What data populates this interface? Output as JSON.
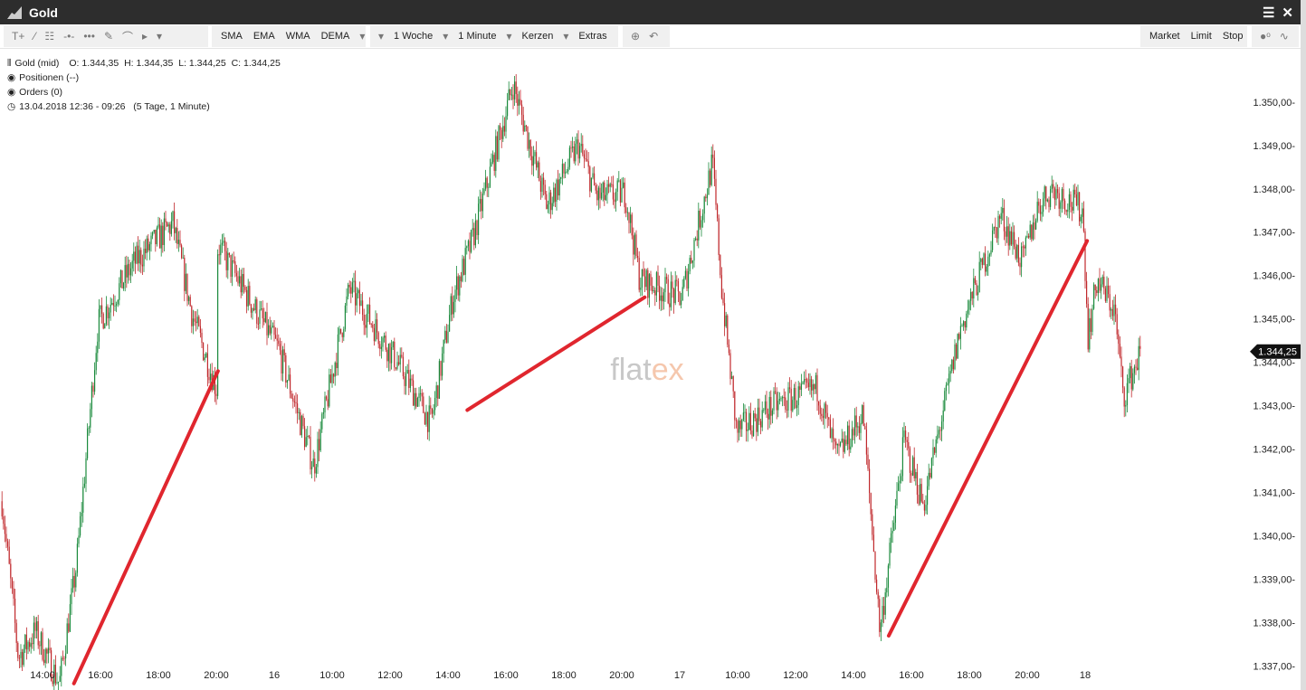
{
  "window": {
    "title": "Gold",
    "menu_icon": "hamburger-icon",
    "close_icon": "close-icon"
  },
  "toolbar": {
    "drawing_tools": [
      "text-tool-icon",
      "line-tool-icon",
      "fibonacci-tool-icon",
      "horizontal-line-icon",
      "channel-icon",
      "pencil-icon",
      "arc-icon",
      "arrow-icon",
      "dropdown-icon"
    ],
    "indicators": [
      "SMA",
      "EMA",
      "WMA",
      "DEMA"
    ],
    "period": "1 Woche",
    "interval": "1 Minute",
    "chart_type": "Kerzen",
    "extras": "Extras",
    "orders": [
      "Market",
      "Limit",
      "Stop"
    ]
  },
  "legend": {
    "instrument": "Gold (mid)",
    "ohlc": "O: 1.344,35  H: 1.344,35  L: 1.344,25  C: 1.344,25",
    "positions": "Positionen (--)",
    "orders": "Orders (0)",
    "range": "13.04.2018 12:36 - 09:26   (5 Tage, 1 Minute)"
  },
  "watermark": "flatex",
  "chart_data": {
    "type": "candlestick",
    "colors": {
      "up": "#1a8a3c",
      "down": "#c0282c",
      "trendline": "#e0262e"
    },
    "ylim": [
      1336.5,
      1350.6
    ],
    "y_ticks": [
      "1.337,00",
      "1.338,00",
      "1.339,00",
      "1.340,00",
      "1.341,00",
      "1.342,00",
      "1.343,00",
      "1.344,00",
      "1.345,00",
      "1.346,00",
      "1.347,00",
      "1.348,00",
      "1.349,00",
      "1.350,00"
    ],
    "y_tick_values": [
      1337,
      1338,
      1339,
      1340,
      1341,
      1342,
      1343,
      1344,
      1345,
      1346,
      1347,
      1348,
      1349,
      1350
    ],
    "last_price": "1.344,25",
    "last_price_value": 1344.25,
    "x_ticks": [
      {
        "label": "14:00",
        "t": "2018-04-13 14:00"
      },
      {
        "label": "16:00",
        "t": "2018-04-13 16:00"
      },
      {
        "label": "18:00",
        "t": "2018-04-13 18:00"
      },
      {
        "label": "20:00",
        "t": "2018-04-13 20:00"
      },
      {
        "label": "16",
        "t": "2018-04-16 00:00"
      },
      {
        "label": "10:00",
        "t": "2018-04-16 10:00"
      },
      {
        "label": "12:00",
        "t": "2018-04-16 12:00"
      },
      {
        "label": "14:00",
        "t": "2018-04-16 14:00"
      },
      {
        "label": "16:00",
        "t": "2018-04-16 16:00"
      },
      {
        "label": "18:00",
        "t": "2018-04-16 18:00"
      },
      {
        "label": "20:00",
        "t": "2018-04-16 20:00"
      },
      {
        "label": "17",
        "t": "2018-04-17 00:00"
      },
      {
        "label": "10:00",
        "t": "2018-04-17 10:00"
      },
      {
        "label": "12:00",
        "t": "2018-04-17 12:00"
      },
      {
        "label": "14:00",
        "t": "2018-04-17 14:00"
      },
      {
        "label": "16:00",
        "t": "2018-04-17 16:00"
      },
      {
        "label": "18:00",
        "t": "2018-04-17 18:00"
      },
      {
        "label": "20:00",
        "t": "2018-04-17 20:00"
      },
      {
        "label": "18",
        "t": "2018-04-18 00:00"
      }
    ],
    "price_path": [
      [
        "2018-04-13 12:36",
        1340.8
      ],
      [
        "2018-04-13 13:10",
        1337.2
      ],
      [
        "2018-04-13 13:45",
        1337.8
      ],
      [
        "2018-04-13 14:35",
        1336.6
      ],
      [
        "2018-04-13 15:10",
        1339.3
      ],
      [
        "2018-04-13 15:55",
        1344.9
      ],
      [
        "2018-04-13 17:10",
        1346.3
      ],
      [
        "2018-04-13 18:30",
        1347.2
      ],
      [
        "2018-04-13 19:10",
        1345.1
      ],
      [
        "2018-04-13 20:00",
        1343.4
      ],
      [
        "2018-04-13 21:20",
        1346.7
      ],
      [
        "2018-04-16 00:45",
        1344.3
      ],
      [
        "2018-04-16 06:50",
        1341.6
      ],
      [
        "2018-04-16 10:36",
        1345.7
      ],
      [
        "2018-04-16 12:10",
        1344.1
      ],
      [
        "2018-04-16 13:25",
        1342.6
      ],
      [
        "2018-04-16 14:10",
        1345.5
      ],
      [
        "2018-04-16 14:50",
        1346.8
      ],
      [
        "2018-04-16 16:15",
        1350.4
      ],
      [
        "2018-04-16 17:25",
        1347.6
      ],
      [
        "2018-04-16 18:30",
        1349.0
      ],
      [
        "2018-04-16 19:10",
        1347.8
      ],
      [
        "2018-04-16 20:15",
        1347.9
      ],
      [
        "2018-04-16 21:15",
        1345.9
      ],
      [
        "2018-04-17 00:20",
        1345.5
      ],
      [
        "2018-04-17 05:40",
        1348.6
      ],
      [
        "2018-04-17 07:15",
        1345.7
      ],
      [
        "2018-04-17 09:50",
        1342.4
      ],
      [
        "2018-04-17 11:15",
        1343.0
      ],
      [
        "2018-04-17 12:45",
        1343.4
      ],
      [
        "2018-04-17 13:25",
        1341.8
      ],
      [
        "2018-04-17 14:20",
        1342.8
      ],
      [
        "2018-04-17 14:55",
        1337.8
      ],
      [
        "2018-04-17 15:45",
        1342.2
      ],
      [
        "2018-04-17 16:25",
        1340.7
      ],
      [
        "2018-04-17 17:40",
        1344.7
      ],
      [
        "2018-04-17 19:05",
        1347.4
      ],
      [
        "2018-04-17 19:50",
        1346.3
      ],
      [
        "2018-04-17 20:45",
        1347.6
      ],
      [
        "2018-04-17 21:40",
        1348.0
      ],
      [
        "2018-04-17 23:50",
        1347.5
      ],
      [
        "2018-04-18 00:30",
        1344.6
      ],
      [
        "2018-04-18 02:00",
        1345.9
      ],
      [
        "2018-04-18 05:00",
        1345.2
      ],
      [
        "2018-04-18 06:30",
        1343.2
      ],
      [
        "2018-04-18 09:26",
        1344.25
      ]
    ],
    "trendlines": [
      {
        "from": [
          "2018-04-13 15:05",
          1336.6
        ],
        "to": [
          "2018-04-13 21:30",
          1343.8
        ]
      },
      {
        "from": [
          "2018-04-16 14:40",
          1342.9
        ],
        "to": [
          "2018-04-16 21:35",
          1345.5
        ]
      },
      {
        "from": [
          "2018-04-17 15:13",
          1337.7
        ],
        "to": [
          "2018-04-18 00:20",
          1346.8
        ]
      }
    ]
  }
}
